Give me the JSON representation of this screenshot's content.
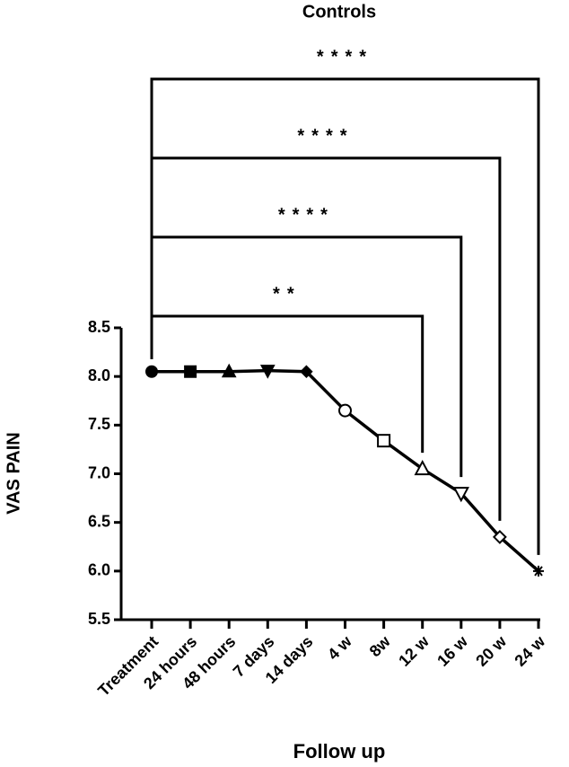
{
  "chart_data": {
    "type": "line",
    "title": "Controls",
    "xlabel": "Follow up",
    "ylabel": "VAS PAIN",
    "categories": [
      "Treatment",
      "24 hours",
      "48 hours",
      "7 days",
      "14 days",
      "4 w",
      "8w",
      "12 w",
      "16 w",
      "20 w",
      "24 w"
    ],
    "series": [
      {
        "color": "#000000",
        "values": [
          8.05,
          8.05,
          8.05,
          8.06,
          8.05,
          7.65,
          7.34,
          7.05,
          6.8,
          6.35,
          6.0
        ],
        "markers": [
          "circle",
          "square",
          "triangle-up",
          "triangle-down",
          "diamond",
          "open-circle",
          "open-square",
          "open-triangle-up",
          "open-triangle-down",
          "open-diamond",
          "asterisk"
        ]
      }
    ],
    "ylim": [
      5.5,
      8.5
    ],
    "yticks": [
      8.5,
      {
        "value": 8,
        "label": "8.0"
      },
      7.5,
      {
        "value": 7,
        "label": "7.0"
      },
      6.5,
      {
        "value": 6,
        "label": "6.0"
      },
      5.5
    ],
    "annotations": [
      "**",
      "****",
      "****",
      "****"
    ]
  }
}
